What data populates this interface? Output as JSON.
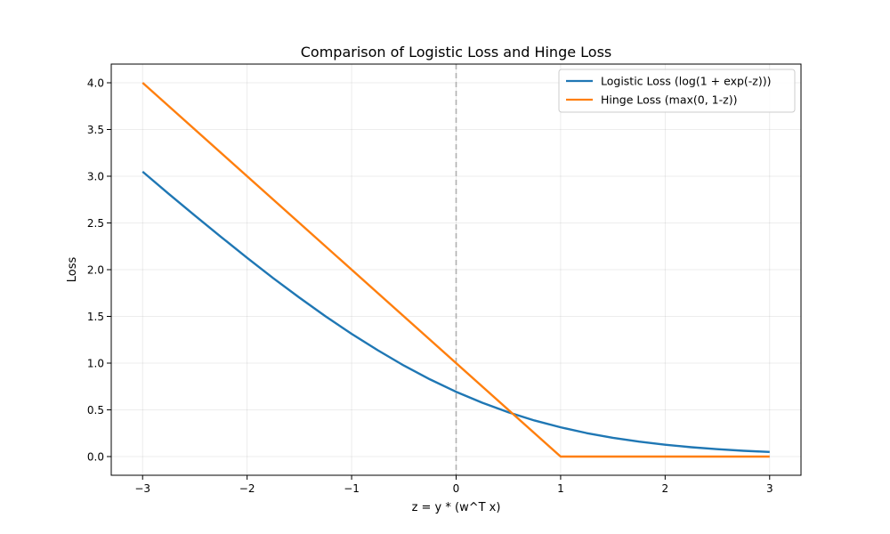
{
  "chart_data": {
    "type": "line",
    "title": "Comparison of Logistic Loss and Hinge Loss",
    "xlabel": "z = y * (w^T x)",
    "ylabel": "Loss",
    "xlim": [
      -3.3,
      3.3
    ],
    "ylim": [
      -0.2,
      4.2
    ],
    "x_ticks": [
      -3,
      -2,
      -1,
      0,
      1,
      2,
      3
    ],
    "x_tick_labels": [
      "−3",
      "−2",
      "−1",
      "0",
      "1",
      "2",
      "3"
    ],
    "y_ticks": [
      0.0,
      0.5,
      1.0,
      1.5,
      2.0,
      2.5,
      3.0,
      3.5,
      4.0
    ],
    "y_tick_labels": [
      "0.0",
      "0.5",
      "1.0",
      "1.5",
      "2.0",
      "2.5",
      "3.0",
      "3.5",
      "4.0"
    ],
    "grid": true,
    "legend_position": "top-right",
    "reference_line": {
      "orientation": "vertical",
      "x": 0,
      "style": "dashed",
      "color": "#b0b0b0"
    },
    "series": [
      {
        "name": "Logistic Loss (log(1 + exp(-z)))",
        "color": "#1f77b4",
        "x": [
          -3.0,
          -2.75,
          -2.5,
          -2.25,
          -2.0,
          -1.75,
          -1.5,
          -1.25,
          -1.0,
          -0.75,
          -0.5,
          -0.25,
          0.0,
          0.25,
          0.5,
          0.75,
          1.0,
          1.25,
          1.5,
          1.75,
          2.0,
          2.25,
          2.5,
          2.75,
          3.0
        ],
        "y": [
          3.049,
          2.811,
          2.579,
          2.351,
          2.127,
          1.909,
          1.701,
          1.501,
          1.313,
          1.138,
          0.974,
          0.826,
          0.693,
          0.576,
          0.474,
          0.386,
          0.313,
          0.251,
          0.201,
          0.16,
          0.127,
          0.1,
          0.079,
          0.062,
          0.049
        ]
      },
      {
        "name": "Hinge Loss (max(0, 1-z))",
        "color": "#ff7f0e",
        "x": [
          -3.0,
          1.0,
          3.0
        ],
        "y": [
          4.0,
          0.0,
          0.0
        ]
      }
    ]
  }
}
